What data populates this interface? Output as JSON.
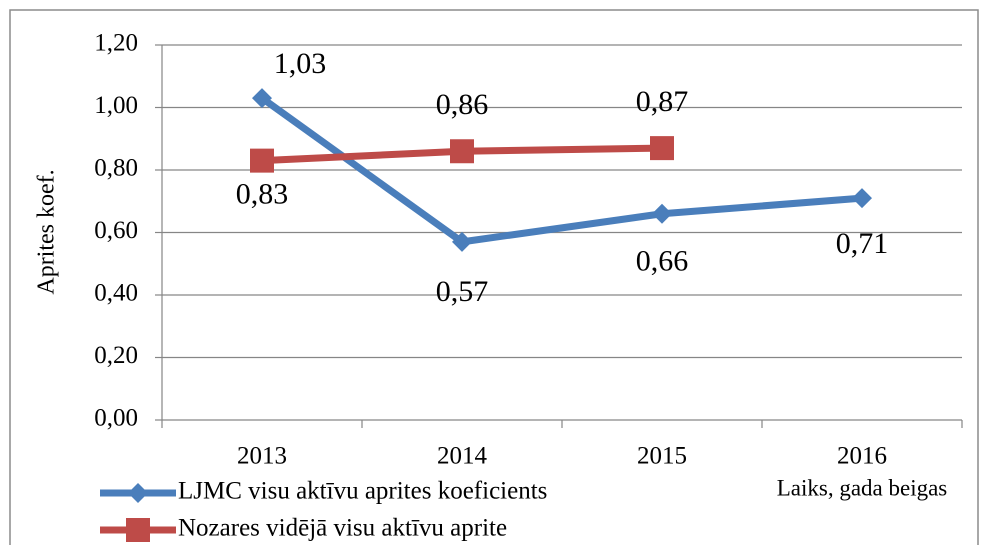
{
  "chart_data": {
    "type": "line",
    "y_label": "Aprites koef.",
    "x_label": "Laiks, gada beigas",
    "categories": [
      "2013",
      "2014",
      "2015",
      "2016"
    ],
    "series": [
      {
        "name": "LJMC visu aktīvu aprites koeficients",
        "color": "#4a7ebb",
        "marker": "diamond",
        "values": [
          1.03,
          0.57,
          0.66,
          0.71
        ],
        "value_labels": [
          "1,03",
          "0,57",
          "0,66",
          "0,71"
        ]
      },
      {
        "name": "Nozares vidējā visu aktīvu aprite",
        "color": "#be4b48",
        "marker": "square",
        "values": [
          0.83,
          0.86,
          0.87,
          null
        ],
        "value_labels": [
          "0,83",
          "0,86",
          "0,87",
          null
        ]
      }
    ],
    "ylim": [
      0,
      1.2
    ],
    "yticks": [
      {
        "value": 0,
        "label": "0,00"
      },
      {
        "value": 0.2,
        "label": "0,20"
      },
      {
        "value": 0.4,
        "label": "0,40"
      },
      {
        "value": 0.6,
        "label": "0,60"
      },
      {
        "value": 0.8,
        "label": "0,80"
      },
      {
        "value": 1.0,
        "label": "1,00"
      },
      {
        "value": 1.2,
        "label": "1,20"
      }
    ],
    "grid": true,
    "legend": "bottom-left"
  }
}
